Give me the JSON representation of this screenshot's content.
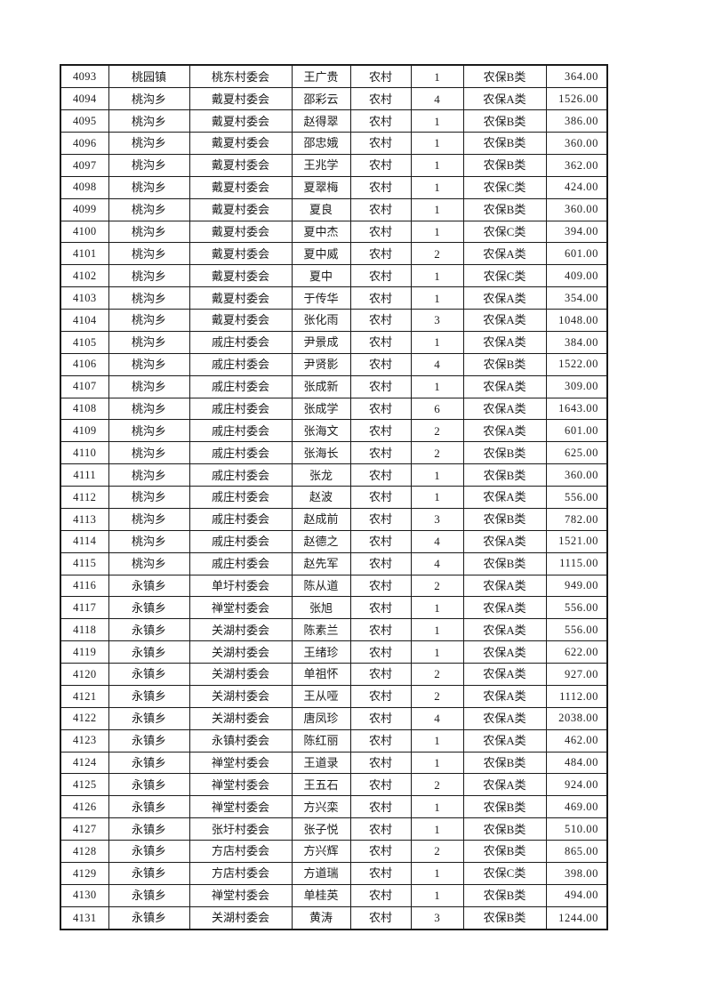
{
  "page": {
    "background": "#ffffff",
    "border_color": "#1a1a1a",
    "text_color": "#1c1c1c"
  },
  "table": {
    "rows": [
      [
        "4093",
        "桃园镇",
        "桃东村委会",
        "王广贵",
        "农村",
        "1",
        "农保B类",
        "364.00"
      ],
      [
        "4094",
        "桃沟乡",
        "戴夏村委会",
        "邵彩云",
        "农村",
        "4",
        "农保A类",
        "1526.00"
      ],
      [
        "4095",
        "桃沟乡",
        "戴夏村委会",
        "赵得翠",
        "农村",
        "1",
        "农保B类",
        "386.00"
      ],
      [
        "4096",
        "桃沟乡",
        "戴夏村委会",
        "邵忠娥",
        "农村",
        "1",
        "农保B类",
        "360.00"
      ],
      [
        "4097",
        "桃沟乡",
        "戴夏村委会",
        "王兆学",
        "农村",
        "1",
        "农保B类",
        "362.00"
      ],
      [
        "4098",
        "桃沟乡",
        "戴夏村委会",
        "夏翠梅",
        "农村",
        "1",
        "农保C类",
        "424.00"
      ],
      [
        "4099",
        "桃沟乡",
        "戴夏村委会",
        "夏良",
        "农村",
        "1",
        "农保B类",
        "360.00"
      ],
      [
        "4100",
        "桃沟乡",
        "戴夏村委会",
        "夏中杰",
        "农村",
        "1",
        "农保C类",
        "394.00"
      ],
      [
        "4101",
        "桃沟乡",
        "戴夏村委会",
        "夏中威",
        "农村",
        "2",
        "农保A类",
        "601.00"
      ],
      [
        "4102",
        "桃沟乡",
        "戴夏村委会",
        "夏中",
        "农村",
        "1",
        "农保C类",
        "409.00"
      ],
      [
        "4103",
        "桃沟乡",
        "戴夏村委会",
        "于传华",
        "农村",
        "1",
        "农保A类",
        "354.00"
      ],
      [
        "4104",
        "桃沟乡",
        "戴夏村委会",
        "张化雨",
        "农村",
        "3",
        "农保A类",
        "1048.00"
      ],
      [
        "4105",
        "桃沟乡",
        "戚庄村委会",
        "尹景成",
        "农村",
        "1",
        "农保A类",
        "384.00"
      ],
      [
        "4106",
        "桃沟乡",
        "戚庄村委会",
        "尹贤影",
        "农村",
        "4",
        "农保B类",
        "1522.00"
      ],
      [
        "4107",
        "桃沟乡",
        "戚庄村委会",
        "张成新",
        "农村",
        "1",
        "农保A类",
        "309.00"
      ],
      [
        "4108",
        "桃沟乡",
        "戚庄村委会",
        "张成学",
        "农村",
        "6",
        "农保A类",
        "1643.00"
      ],
      [
        "4109",
        "桃沟乡",
        "戚庄村委会",
        "张海文",
        "农村",
        "2",
        "农保A类",
        "601.00"
      ],
      [
        "4110",
        "桃沟乡",
        "戚庄村委会",
        "张海长",
        "农村",
        "2",
        "农保B类",
        "625.00"
      ],
      [
        "4111",
        "桃沟乡",
        "戚庄村委会",
        "张龙",
        "农村",
        "1",
        "农保B类",
        "360.00"
      ],
      [
        "4112",
        "桃沟乡",
        "戚庄村委会",
        "赵波",
        "农村",
        "1",
        "农保A类",
        "556.00"
      ],
      [
        "4113",
        "桃沟乡",
        "戚庄村委会",
        "赵成前",
        "农村",
        "3",
        "农保B类",
        "782.00"
      ],
      [
        "4114",
        "桃沟乡",
        "戚庄村委会",
        "赵德之",
        "农村",
        "4",
        "农保A类",
        "1521.00"
      ],
      [
        "4115",
        "桃沟乡",
        "戚庄村委会",
        "赵先军",
        "农村",
        "4",
        "农保B类",
        "1115.00"
      ],
      [
        "4116",
        "永镇乡",
        "单圩村委会",
        "陈从道",
        "农村",
        "2",
        "农保A类",
        "949.00"
      ],
      [
        "4117",
        "永镇乡",
        "禅堂村委会",
        "张旭",
        "农村",
        "1",
        "农保A类",
        "556.00"
      ],
      [
        "4118",
        "永镇乡",
        "关湖村委会",
        "陈素兰",
        "农村",
        "1",
        "农保A类",
        "556.00"
      ],
      [
        "4119",
        "永镇乡",
        "关湖村委会",
        "王绪珍",
        "农村",
        "1",
        "农保A类",
        "622.00"
      ],
      [
        "4120",
        "永镇乡",
        "关湖村委会",
        "单祖怀",
        "农村",
        "2",
        "农保A类",
        "927.00"
      ],
      [
        "4121",
        "永镇乡",
        "关湖村委会",
        "王从哑",
        "农村",
        "2",
        "农保A类",
        "1112.00"
      ],
      [
        "4122",
        "永镇乡",
        "关湖村委会",
        "唐凤珍",
        "农村",
        "4",
        "农保A类",
        "2038.00"
      ],
      [
        "4123",
        "永镇乡",
        "永镇村委会",
        "陈红丽",
        "农村",
        "1",
        "农保A类",
        "462.00"
      ],
      [
        "4124",
        "永镇乡",
        "禅堂村委会",
        "王道录",
        "农村",
        "1",
        "农保B类",
        "484.00"
      ],
      [
        "4125",
        "永镇乡",
        "禅堂村委会",
        "王五石",
        "农村",
        "2",
        "农保A类",
        "924.00"
      ],
      [
        "4126",
        "永镇乡",
        "禅堂村委会",
        "方兴栾",
        "农村",
        "1",
        "农保B类",
        "469.00"
      ],
      [
        "4127",
        "永镇乡",
        "张圩村委会",
        "张子悦",
        "农村",
        "1",
        "农保B类",
        "510.00"
      ],
      [
        "4128",
        "永镇乡",
        "方店村委会",
        "方兴辉",
        "农村",
        "2",
        "农保B类",
        "865.00"
      ],
      [
        "4129",
        "永镇乡",
        "方店村委会",
        "方道瑞",
        "农村",
        "1",
        "农保C类",
        "398.00"
      ],
      [
        "4130",
        "永镇乡",
        "禅堂村委会",
        "单桂英",
        "农村",
        "1",
        "农保B类",
        "494.00"
      ],
      [
        "4131",
        "永镇乡",
        "关湖村委会",
        "黄涛",
        "农村",
        "3",
        "农保B类",
        "1244.00"
      ]
    ]
  }
}
